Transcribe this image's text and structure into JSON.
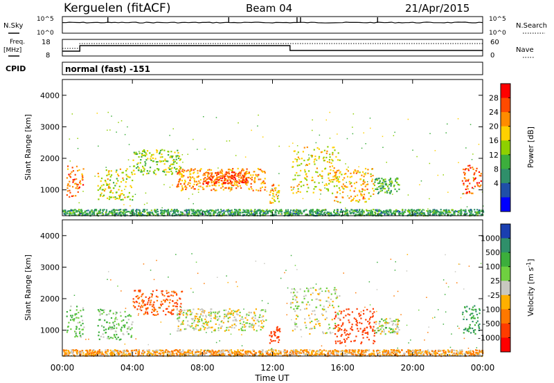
{
  "header": {
    "station": "Kerguelen (fitACF)",
    "beam": "Beam 04",
    "date": "21/Apr/2015"
  },
  "noise_panel": {
    "left_label": "N.Sky",
    "right_label": "N.Search",
    "left_ticks": [
      "10^5",
      "10^0"
    ],
    "right_ticks": [
      "10^5",
      "10^0"
    ]
  },
  "freq_panel": {
    "left_label_line1": "Freq.",
    "left_label_line2": "[MHz]",
    "right_label": "Nave",
    "left_ticks": [
      "18",
      "8"
    ],
    "right_ticks": [
      "60",
      "0"
    ]
  },
  "cpid": {
    "label": "CPID",
    "value": "normal (fast) -151"
  },
  "chart_data": [
    {
      "type": "heatmap",
      "title": "",
      "parameter": "Power",
      "ylabel": "Slant Range [km]",
      "ylim": [
        180,
        4500
      ],
      "yticks": [
        "1000",
        "2000",
        "3000",
        "4000"
      ],
      "colorbar_label": "Power [dB]",
      "colorbar_ticks": [
        "28",
        "24",
        "20",
        "16",
        "12",
        "8",
        "4"
      ],
      "colorbar_colors": [
        "#ff0000",
        "#ff4a00",
        "#ff8c00",
        "#ffd000",
        "#8ed000",
        "#3cae3c",
        "#2f8f6a",
        "#1f4fa8",
        "#0000ff"
      ],
      "x_hours": [
        0,
        4,
        8,
        12,
        16,
        20,
        24
      ],
      "echo_regions": [
        {
          "t0": 0.2,
          "t1": 1.2,
          "r0": 800,
          "r1": 1800,
          "level_db": 22
        },
        {
          "t0": 2.0,
          "t1": 4.0,
          "r0": 700,
          "r1": 1700,
          "level_db": 14
        },
        {
          "t0": 4.0,
          "t1": 6.8,
          "r0": 1500,
          "r1": 2300,
          "level_db": 12
        },
        {
          "t0": 6.5,
          "t1": 11.6,
          "r0": 1000,
          "r1": 1700,
          "level_db": 20
        },
        {
          "t0": 8.0,
          "t1": 10.5,
          "r0": 1200,
          "r1": 1600,
          "level_db": 24
        },
        {
          "t0": 11.8,
          "t1": 12.4,
          "r0": 600,
          "r1": 1200,
          "level_db": 18
        },
        {
          "t0": 13.0,
          "t1": 15.8,
          "r0": 900,
          "r1": 2400,
          "level_db": 15
        },
        {
          "t0": 15.5,
          "t1": 17.8,
          "r0": 600,
          "r1": 1700,
          "level_db": 18
        },
        {
          "t0": 17.8,
          "t1": 19.2,
          "r0": 900,
          "r1": 1400,
          "level_db": 8
        },
        {
          "t0": 22.8,
          "t1": 23.9,
          "r0": 900,
          "r1": 1800,
          "level_db": 24
        },
        {
          "t0": 0.0,
          "t1": 24.0,
          "r0": 200,
          "r1": 400,
          "level_db": 6
        }
      ]
    },
    {
      "type": "heatmap",
      "title": "",
      "parameter": "Velocity",
      "ylabel": "Slant Range [km]",
      "ylim": [
        180,
        4500
      ],
      "yticks": [
        "1000",
        "2000",
        "3000",
        "4000"
      ],
      "colorbar_label": "Velocity [m s^-1]",
      "colorbar_ticks": [
        "1000",
        "500",
        "100",
        "25",
        "-25",
        "-100",
        "-500",
        "-1000"
      ],
      "colorbar_colors": [
        "#1a3fb0",
        "#2f8f6a",
        "#3cae3c",
        "#6fd040",
        "#c8c8c0",
        "#ffb000",
        "#ff7800",
        "#ff3c00",
        "#ff0000"
      ],
      "x_hours": [
        0,
        4,
        8,
        12,
        16,
        20,
        24
      ],
      "xtick_labels": [
        "00:00",
        "04:00",
        "08:00",
        "12:00",
        "16:00",
        "20:00",
        "00:00"
      ],
      "xlabel": "Time UT",
      "echo_regions": [
        {
          "t0": 0.2,
          "t1": 1.2,
          "r0": 800,
          "r1": 1800,
          "velocity": 60
        },
        {
          "t0": 2.0,
          "t1": 4.0,
          "r0": 700,
          "r1": 1700,
          "velocity": 50
        },
        {
          "t0": 4.0,
          "t1": 6.8,
          "r0": 1500,
          "r1": 2300,
          "velocity": -300
        },
        {
          "t0": 6.5,
          "t1": 11.6,
          "r0": 1000,
          "r1": 1700,
          "velocity": 0
        },
        {
          "t0": 11.8,
          "t1": 12.4,
          "r0": 600,
          "r1": 1200,
          "velocity": -400
        },
        {
          "t0": 13.0,
          "t1": 15.8,
          "r0": 900,
          "r1": 2400,
          "velocity": 0
        },
        {
          "t0": 15.5,
          "t1": 17.8,
          "r0": 600,
          "r1": 1700,
          "velocity": -400
        },
        {
          "t0": 17.8,
          "t1": 19.2,
          "r0": 900,
          "r1": 1400,
          "velocity": 20
        },
        {
          "t0": 22.8,
          "t1": 23.9,
          "r0": 900,
          "r1": 1800,
          "velocity": 300
        },
        {
          "t0": 0.0,
          "t1": 24.0,
          "r0": 200,
          "r1": 400,
          "velocity": -50
        }
      ]
    }
  ]
}
